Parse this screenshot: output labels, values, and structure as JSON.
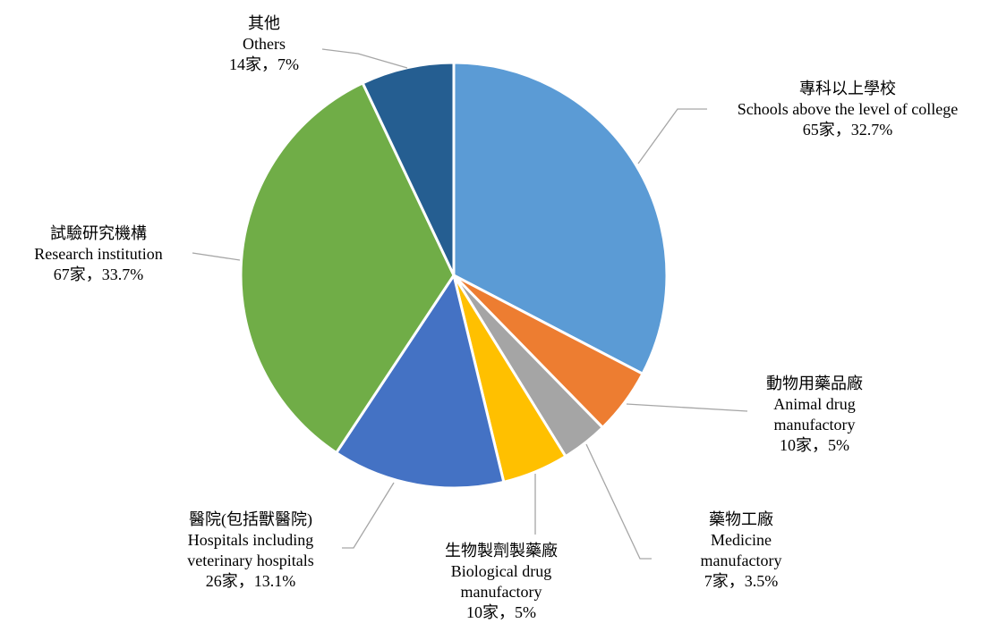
{
  "chart_data": {
    "type": "pie",
    "categories": [
      "專科以上學校",
      "動物用藥品廠",
      "藥物工廠",
      "生物製劑製藥廠",
      "醫院(包括獸醫院)",
      "試驗研究機構",
      "其他"
    ],
    "categories_en": [
      "Schools above the level of college",
      "Animal drug manufactory",
      "Medicine manufactory",
      "Biological drug manufactory",
      "Hospitals including veterinary hospitals",
      "Research institution",
      "Others"
    ],
    "values": [
      65,
      10,
      7,
      10,
      26,
      67,
      14
    ],
    "value_labels": [
      "65家，32.7%",
      "10家，5%",
      "7家，3.5%",
      "10家，5%",
      "26家，13.1%",
      "67家，33.7%",
      "14家，7%"
    ],
    "colors": [
      "#5b9bd5",
      "#ed7d31",
      "#a5a5a5",
      "#ffc000",
      "#4472c4",
      "#70ad47",
      "#255e91"
    ]
  }
}
